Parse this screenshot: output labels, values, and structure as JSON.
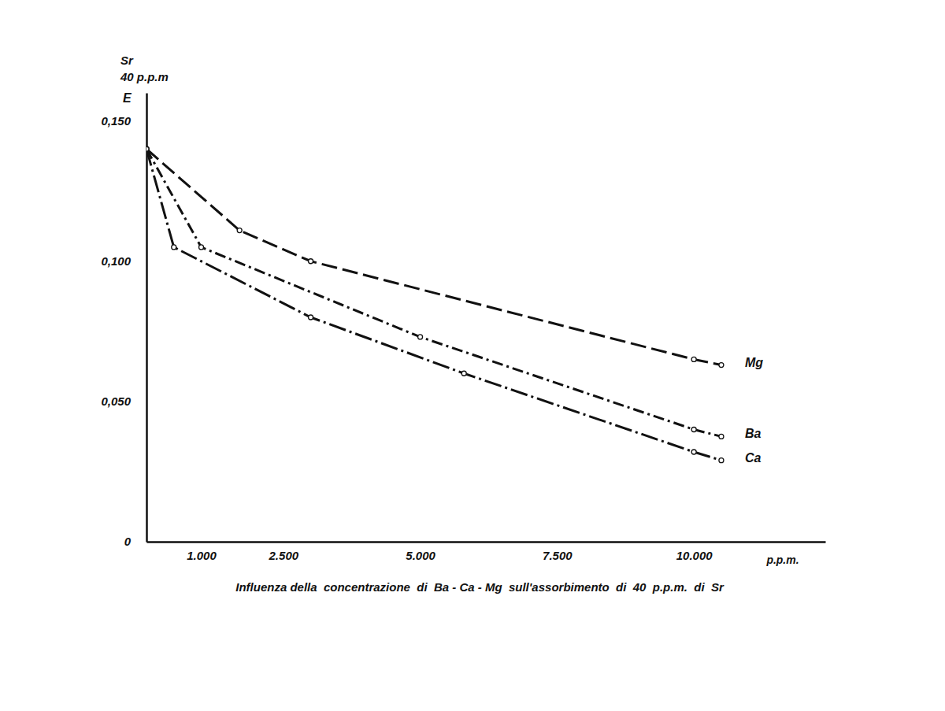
{
  "chart_data": {
    "type": "line",
    "title": "Influenza della  concentrazione  di  Ba - Ca - Mg  sull'assorbimento  di  40  p.p.m.  di  Sr",
    "x_label": "p.p.m.",
    "y_label": [
      "Sr",
      "40 p.p.m"
    ],
    "annotations": [
      "E"
    ],
    "xlim": [
      0,
      12400
    ],
    "ylim": [
      0,
      0.16
    ],
    "xticks": [
      {
        "value": 1000,
        "label": "1.000"
      },
      {
        "value": 2500,
        "label": "2.500"
      },
      {
        "value": 5000,
        "label": "5.000"
      },
      {
        "value": 7500,
        "label": "7.500"
      },
      {
        "value": 10000,
        "label": "10.000"
      }
    ],
    "yticks": [
      0,
      {
        "value": 0.05,
        "label": "0,050"
      },
      {
        "value": 0.1,
        "label": "0,100"
      },
      {
        "value": 0.15,
        "label": "0,150"
      }
    ],
    "grid": false,
    "series": [
      {
        "name": "Mg",
        "color": "#111111",
        "line_style": "long-dash",
        "marker": "circle",
        "x": [
          0,
          1700,
          3000,
          10000,
          10500
        ],
        "values": [
          0.14,
          0.111,
          0.1,
          0.065,
          0.063
        ]
      },
      {
        "name": "Ba",
        "color": "#111111",
        "line_style": "dash-dot",
        "marker": "circle",
        "x": [
          0,
          1000,
          5000,
          10000,
          10500
        ],
        "values": [
          0.14,
          0.105,
          0.073,
          0.04,
          0.0375
        ]
      },
      {
        "name": "Ca",
        "color": "#111111",
        "line_style": "long-dash-dot",
        "marker": "circle",
        "x": [
          0,
          500,
          3000,
          5800,
          10000,
          10500
        ],
        "values": [
          0.14,
          0.105,
          0.08,
          0.06,
          0.032,
          0.029
        ]
      }
    ]
  }
}
